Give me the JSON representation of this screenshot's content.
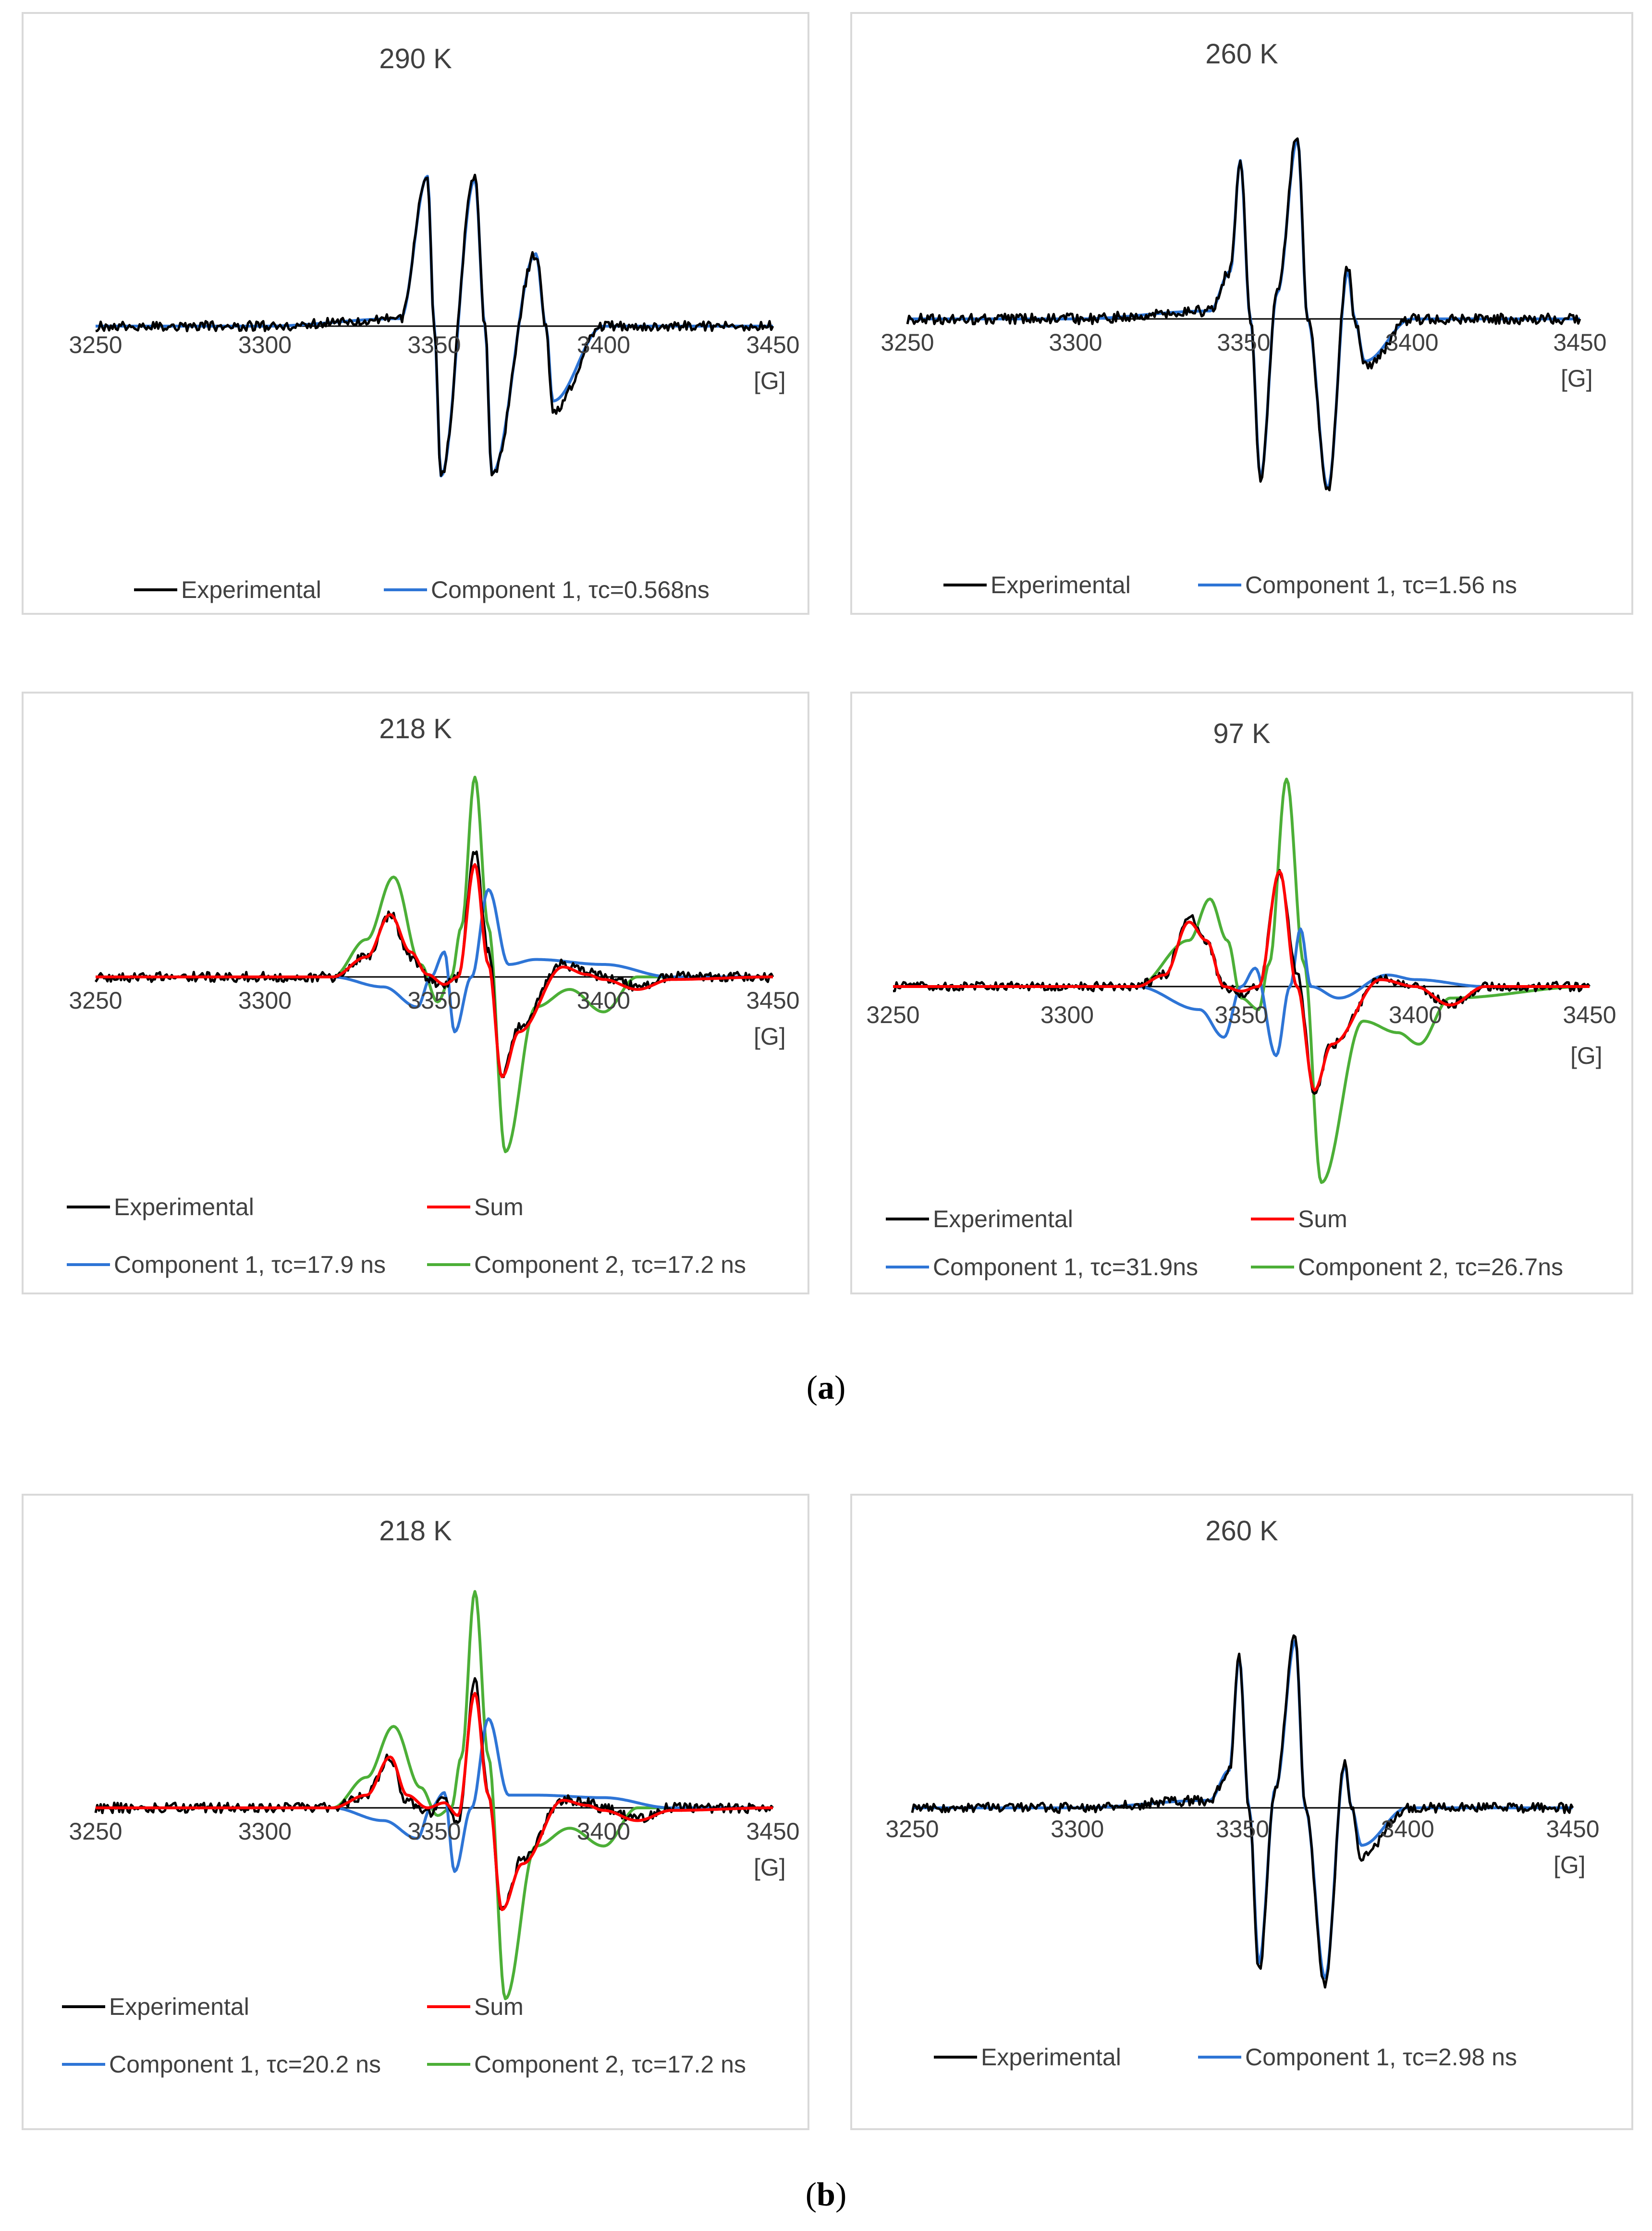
{
  "colors": {
    "experimental": "#000000",
    "sum": "#ff0000",
    "component_1": "#2e75d6",
    "component_2": "#4caf37",
    "axis": "#000000",
    "frame": "#d9d9d9",
    "text": "#404040"
  },
  "subfigure_labels": {
    "a_open": "(",
    "a_letter": "a",
    "a_close": ")",
    "b_open": "(",
    "b_letter": "b",
    "b_close": ")"
  },
  "chart_data": [
    {
      "type": "line",
      "title": "290 K",
      "x_unit": "[G]",
      "xlim": [
        3250,
        3450
      ],
      "x_ticks": [
        "3250",
        "3300",
        "3350",
        "3400",
        "3450"
      ],
      "grid": false,
      "legend_position": "bottom",
      "legend": [
        {
          "label": "Experimental",
          "key": "experimental"
        },
        {
          "label": "Component 1,  τc=0.568ns",
          "key": "component_1"
        }
      ],
      "series": [
        {
          "name": "Experimental",
          "key": "experimental",
          "x": [
            3250,
            3300,
            3340,
            3348,
            3350,
            3352,
            3362,
            3365,
            3367,
            3380,
            3383,
            3385,
            3400,
            3450
          ],
          "y": [
            0,
            0,
            3,
            60,
            0,
            -60,
            60,
            0,
            -60,
            29,
            0,
            -34,
            0,
            0
          ]
        },
        {
          "name": "Component 1,  τc=0.568ns",
          "key": "component_1",
          "x": [
            3250,
            3300,
            3340,
            3348,
            3350,
            3352,
            3362,
            3365,
            3367,
            3380,
            3383,
            3385,
            3400,
            3450
          ],
          "y": [
            0,
            0,
            3,
            60,
            0,
            -60,
            59,
            0,
            -59,
            29,
            0,
            -30,
            0,
            0
          ]
        }
      ]
    },
    {
      "type": "line",
      "title": "260 K",
      "x_unit": "[G]",
      "xlim": [
        3250,
        3450
      ],
      "x_ticks": [
        "3250",
        "3300",
        "3350",
        "3400",
        "3450"
      ],
      "grid": false,
      "legend_position": "bottom",
      "legend": [
        {
          "label": "Experimental",
          "key": "experimental"
        },
        {
          "label": "Component 1, τc=1.56 ns",
          "key": "component_1"
        }
      ],
      "series": [
        {
          "name": "Experimental",
          "key": "experimental",
          "x": [
            3250,
            3300,
            3340,
            3346,
            3349,
            3352,
            3355,
            3360,
            3366,
            3369,
            3375,
            3381,
            3383,
            3386,
            3400,
            3450
          ],
          "y": [
            0,
            0,
            3,
            18,
            60,
            0,
            -60,
            10,
            70,
            0,
            -65,
            20,
            0,
            -18,
            0,
            0
          ]
        },
        {
          "name": "Component 1, τc=1.56 ns",
          "key": "component_1",
          "x": [
            3250,
            3300,
            3340,
            3346,
            3349,
            3352,
            3355,
            3360,
            3366,
            3369,
            3375,
            3381,
            3383,
            3386,
            3400,
            3450
          ],
          "y": [
            0,
            0,
            3,
            18,
            60,
            0,
            -60,
            10,
            68,
            0,
            -64,
            18,
            0,
            -16,
            0,
            0
          ]
        }
      ]
    },
    {
      "type": "line",
      "title": "218 K",
      "x_unit": "[G]",
      "xlim": [
        3250,
        3450
      ],
      "x_ticks": [
        "3250",
        "3300",
        "3350",
        "3400",
        "3450"
      ],
      "grid": false,
      "legend_position": "bottom",
      "legend": [
        {
          "label": "Experimental",
          "key": "experimental"
        },
        {
          "label": "Sum",
          "key": "sum"
        },
        {
          "label": "Component 1, τc=17.9 ns",
          "key": "component_1"
        },
        {
          "label": "Component 2, τc=17.2 ns",
          "key": "component_2"
        }
      ],
      "series": [
        {
          "name": "Experimental",
          "key": "experimental",
          "x": [
            3250,
            3320,
            3330,
            3337,
            3343,
            3348,
            3353,
            3357,
            3362,
            3366,
            3370,
            3375,
            3388,
            3395,
            3400,
            3410,
            3420,
            3450
          ],
          "y": [
            0,
            0,
            8,
            25,
            8,
            0,
            -4,
            0,
            50,
            10,
            -40,
            -20,
            5,
            2,
            0,
            -4,
            0,
            0
          ]
        },
        {
          "name": "Sum",
          "key": "sum",
          "x": [
            3250,
            3320,
            3330,
            3337,
            3343,
            3348,
            3353,
            3357,
            3362,
            3366,
            3370,
            3375,
            3388,
            3395,
            3400,
            3410,
            3420,
            3450
          ],
          "y": [
            0,
            0,
            8,
            25,
            10,
            1,
            -3,
            0,
            45,
            5,
            -40,
            -22,
            4,
            1,
            -1,
            -5,
            -1,
            0
          ]
        },
        {
          "name": "Component 1, τc=17.9 ns",
          "key": "component_1",
          "x": [
            3250,
            3320,
            3335,
            3345,
            3349,
            3353,
            3356,
            3361,
            3366,
            3372,
            3380,
            3400,
            3420,
            3450
          ],
          "y": [
            0,
            0,
            -4,
            -12,
            0,
            10,
            -22,
            0,
            35,
            5,
            7,
            5,
            0,
            0
          ]
        },
        {
          "name": "Component 2, τc=17.2 ns",
          "key": "component_2",
          "x": [
            3250,
            3320,
            3330,
            3338,
            3346,
            3351,
            3355,
            3358,
            3362,
            3366,
            3371,
            3380,
            3390,
            3400,
            3410,
            3450
          ],
          "y": [
            0,
            0,
            15,
            40,
            5,
            -10,
            0,
            20,
            80,
            20,
            -70,
            -12,
            -5,
            -14,
            0,
            0
          ]
        }
      ]
    },
    {
      "type": "line",
      "title": "97 K",
      "x_unit": "[G]",
      "xlim": [
        3250,
        3450
      ],
      "x_ticks": [
        "3250",
        "3300",
        "3350",
        "3400",
        "3450"
      ],
      "grid": false,
      "legend_position": "bottom",
      "legend": [
        {
          "label": "Experimental",
          "key": "experimental"
        },
        {
          "label": "Sum",
          "key": "sum"
        },
        {
          "label": "Component 1,  τc=31.9ns",
          "key": "component_1"
        },
        {
          "label": "Component 2,  τc=26.7ns",
          "key": "component_2"
        }
      ],
      "series": [
        {
          "name": "Experimental",
          "key": "experimental",
          "x": [
            3250,
            3320,
            3328,
            3335,
            3340,
            3345,
            3350,
            3355,
            3361,
            3366,
            3371,
            3376,
            3390,
            3400,
            3410,
            3420,
            3450
          ],
          "y": [
            0,
            0,
            5,
            30,
            20,
            0,
            -3,
            0,
            50,
            5,
            -45,
            -25,
            3,
            0,
            -8,
            0,
            0
          ]
        },
        {
          "name": "Sum",
          "key": "sum",
          "x": [
            3250,
            3320,
            3328,
            3335,
            3340,
            3345,
            3350,
            3355,
            3361,
            3366,
            3371,
            3376,
            3390,
            3400,
            3410,
            3420,
            3450
          ],
          "y": [
            0,
            0,
            5,
            28,
            20,
            0,
            -2,
            0,
            50,
            0,
            -45,
            -25,
            3,
            0,
            -8,
            0,
            0
          ]
        },
        {
          "name": "Component 1,  τc=31.9ns",
          "key": "component_1",
          "x": [
            3250,
            3320,
            3338,
            3345,
            3350,
            3354,
            3360,
            3364,
            3367,
            3370,
            3378,
            3392,
            3400,
            3420,
            3450
          ],
          "y": [
            0,
            0,
            -10,
            -22,
            0,
            8,
            -30,
            0,
            25,
            0,
            -5,
            5,
            3,
            0,
            0
          ]
        },
        {
          "name": "Component 2,  τc=26.7ns",
          "key": "component_2",
          "x": [
            3250,
            3320,
            3335,
            3341,
            3346,
            3350,
            3355,
            3358,
            3363,
            3368,
            3373,
            3385,
            3395,
            3401,
            3410,
            3450
          ],
          "y": [
            0,
            0,
            20,
            38,
            20,
            -5,
            -10,
            10,
            90,
            10,
            -85,
            -15,
            -20,
            -25,
            -5,
            0
          ]
        }
      ]
    },
    {
      "type": "line",
      "title": "218 K",
      "x_unit": "[G]",
      "xlim": [
        3250,
        3450
      ],
      "x_ticks": [
        "3250",
        "3300",
        "3350",
        "3400",
        "3450"
      ],
      "grid": false,
      "legend_position": "bottom",
      "legend": [
        {
          "label": "Experimental",
          "key": "experimental"
        },
        {
          "label": "Sum",
          "key": "sum"
        },
        {
          "label": "Component 1, τc=20.2 ns",
          "key": "component_1"
        },
        {
          "label": "Component 2, τc=17.2 ns",
          "key": "component_2"
        }
      ],
      "series": [
        {
          "name": "Experimental",
          "key": "experimental",
          "x": [
            3250,
            3320,
            3330,
            3337,
            3342,
            3348,
            3353,
            3357,
            3362,
            3366,
            3370,
            3376,
            3388,
            3395,
            3400,
            3410,
            3420,
            3450
          ],
          "y": [
            0,
            0,
            5,
            20,
            2,
            -2,
            3,
            -6,
            50,
            5,
            -40,
            -20,
            3,
            2,
            0,
            -4,
            0,
            0
          ]
        },
        {
          "name": "Sum",
          "key": "sum",
          "x": [
            3250,
            3320,
            3330,
            3337,
            3342,
            3348,
            3353,
            3357,
            3362,
            3366,
            3370,
            3376,
            3388,
            3395,
            3400,
            3410,
            3420,
            3450
          ],
          "y": [
            0,
            0,
            5,
            20,
            5,
            0,
            2,
            -3,
            45,
            5,
            -40,
            -22,
            3,
            1,
            -1,
            -5,
            -1,
            0
          ]
        },
        {
          "name": "Component 1, τc=20.2 ns",
          "key": "component_1",
          "x": [
            3250,
            3320,
            3335,
            3345,
            3349,
            3353,
            3356,
            3361,
            3366,
            3372,
            3380,
            3400,
            3420,
            3450
          ],
          "y": [
            0,
            0,
            -5,
            -12,
            0,
            6,
            -25,
            0,
            35,
            5,
            5,
            4,
            0,
            0
          ]
        },
        {
          "name": "Component 2, τc=17.2 ns",
          "key": "component_2",
          "x": [
            3250,
            3320,
            3330,
            3338,
            3346,
            3351,
            3355,
            3358,
            3362,
            3366,
            3371,
            3380,
            3390,
            3400,
            3410,
            3450
          ],
          "y": [
            0,
            0,
            12,
            32,
            8,
            -3,
            0,
            20,
            85,
            20,
            -75,
            -15,
            -8,
            -15,
            0,
            0
          ]
        }
      ]
    },
    {
      "type": "line",
      "title": "260 K",
      "x_unit": "[G]",
      "xlim": [
        3250,
        3450
      ],
      "x_ticks": [
        "3250",
        "3300",
        "3350",
        "3400",
        "3450"
      ],
      "grid": false,
      "legend_position": "bottom",
      "legend": [
        {
          "label": "Experimental",
          "key": "experimental"
        },
        {
          "label": "Component 1, τc=2.98 ns",
          "key": "component_1"
        }
      ],
      "series": [
        {
          "name": "Experimental",
          "key": "experimental",
          "x": [
            3250,
            3300,
            3340,
            3346,
            3349,
            3352,
            3355,
            3360,
            3366,
            3369,
            3375,
            3381,
            3383,
            3386,
            3400,
            3450
          ],
          "y": [
            0,
            0,
            3,
            15,
            60,
            0,
            -65,
            8,
            70,
            0,
            -70,
            18,
            0,
            -20,
            0,
            0
          ]
        },
        {
          "name": "Component 1, τc=2.98 ns",
          "key": "component_1",
          "x": [
            3250,
            3300,
            3340,
            3346,
            3349,
            3352,
            3355,
            3360,
            3366,
            3369,
            3375,
            3381,
            3383,
            3386,
            3400,
            3450
          ],
          "y": [
            0,
            0,
            3,
            15,
            60,
            0,
            -62,
            8,
            67,
            0,
            -68,
            17,
            0,
            -15,
            0,
            0
          ]
        }
      ]
    }
  ]
}
